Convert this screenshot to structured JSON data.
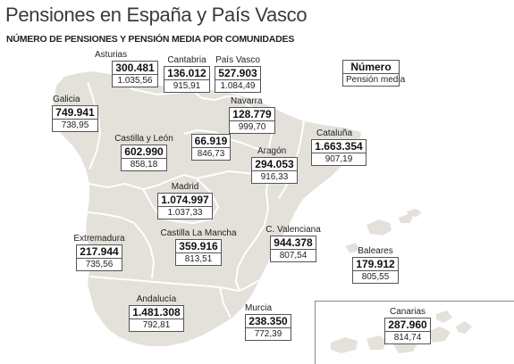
{
  "header": {
    "title": "Pensiones en España y País Vasco",
    "subtitle": "NÚMERO DE PENSIONES Y PENSIÓN MEDIA POR COMUNIDADES"
  },
  "legend": {
    "number_label": "Número",
    "average_label": "Pensión media"
  },
  "colors": {
    "land": "#e3e1da",
    "border": "#ffffff",
    "sea": "#ffffff",
    "box_border": "#555555"
  },
  "regions": {
    "asturias": {
      "name": "Asturias",
      "pensions": "300.481",
      "average": "1.035,56"
    },
    "cantabria": {
      "name": "Cantabria",
      "pensions": "136.012",
      "average": "915,91"
    },
    "pais_vasco": {
      "name": "País Vasco",
      "pensions": "527.903",
      "average": "1.084,49"
    },
    "galicia": {
      "name": "Galicia",
      "pensions": "749.941",
      "average": "738,95"
    },
    "navarra": {
      "name": "Navarra",
      "pensions": "128.779",
      "average": "999,70"
    },
    "castilla_leon": {
      "name": "Castilla y León",
      "pensions": "602.990",
      "average": "858,18"
    },
    "la_rioja": {
      "pensions": "66.919",
      "average": "846,73"
    },
    "aragon": {
      "name": "Aragón",
      "pensions": "294.053",
      "average": "916,33"
    },
    "cataluna": {
      "name": "Cataluña",
      "pensions": "1.663.354",
      "average": "907,19"
    },
    "madrid": {
      "name": "Madrid",
      "pensions": "1.074.997",
      "average": "1.037,33"
    },
    "extremadura": {
      "name": "Extremadura",
      "pensions": "217.944",
      "average": "735,56"
    },
    "castilla_la_mancha": {
      "name": "Castilla La Mancha",
      "pensions": "359.916",
      "average": "813,51"
    },
    "c_valenciana": {
      "name": "C. Valenciana",
      "pensions": "944.378",
      "average": "807,54"
    },
    "baleares": {
      "name": "Baleares",
      "pensions": "179.912",
      "average": "805,55"
    },
    "andalucia": {
      "name": "Andalucía",
      "pensions": "1.481.308",
      "average": "792,81"
    },
    "murcia": {
      "name": "Murcia",
      "pensions": "238.350",
      "average": "772,39"
    },
    "canarias": {
      "name": "Canarias",
      "pensions": "287.960",
      "average": "814,74"
    }
  }
}
